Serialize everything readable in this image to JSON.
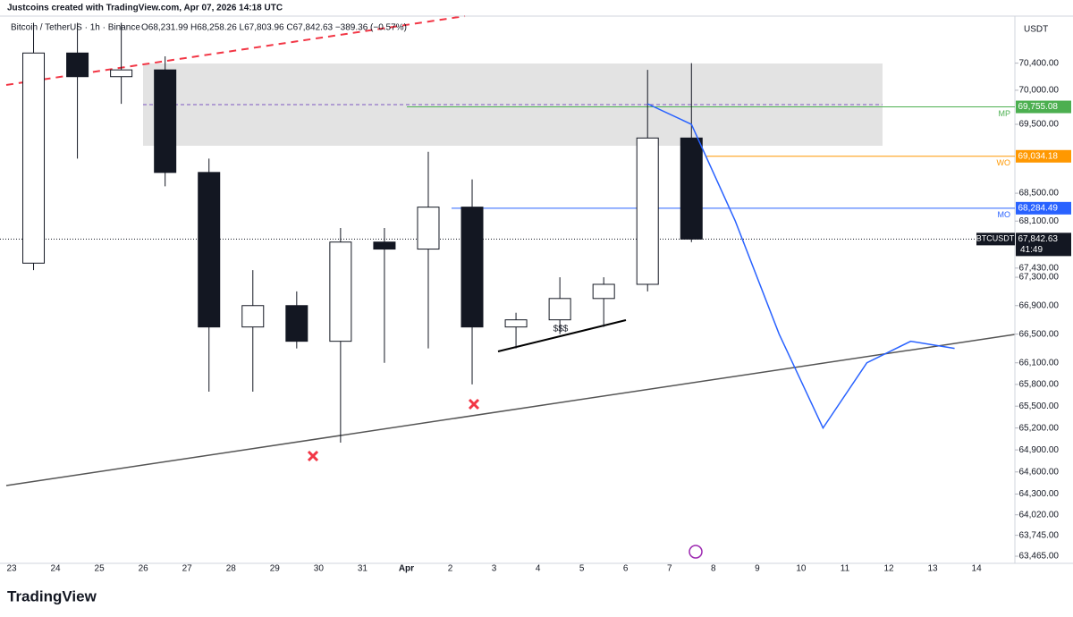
{
  "header": {
    "author": "Justcoins created with TradingView.com, Apr 07, 2026 14:18 UTC",
    "symbol": "Bitcoin / TetherUS · 1h · Binance",
    "ohlc": "O68,231.99 H68,258.26 L67,803.96 C67,842.63 −389.36 (−0.57%)",
    "currency": "USDT"
  },
  "footer": {
    "logo": "TradingView"
  },
  "annotations": {
    "liquidity": "$$$"
  },
  "chart_data": {
    "type": "candlestick",
    "log": true,
    "categories": [
      "23",
      "24",
      "25",
      "26",
      "27",
      "28",
      "29",
      "30",
      "31",
      "Apr",
      "2",
      "3",
      "4",
      "5",
      "6",
      "7",
      "8",
      "9",
      "10",
      "11",
      "12",
      "13",
      "14"
    ],
    "ylim": [
      63370,
      71100
    ],
    "yticks": [
      {
        "value": 70400,
        "label": "70,400.00"
      },
      {
        "value": 70000,
        "label": "70,000.00"
      },
      {
        "value": 69500,
        "label": "69,500.00"
      },
      {
        "value": 68500,
        "label": "68,500.00"
      },
      {
        "value": 68100,
        "label": "68,100.00"
      },
      {
        "value": 67430,
        "label": "67,430.00"
      },
      {
        "value": 67300,
        "label": "67,300.00"
      },
      {
        "value": 66900,
        "label": "66,900.00"
      },
      {
        "value": 66500,
        "label": "66,500.00"
      },
      {
        "value": 66100,
        "label": "66,100.00"
      },
      {
        "value": 65800,
        "label": "65,800.00"
      },
      {
        "value": 65500,
        "label": "65,500.00"
      },
      {
        "value": 65200,
        "label": "65,200.00"
      },
      {
        "value": 64900,
        "label": "64,900.00"
      },
      {
        "value": 64600,
        "label": "64,600.00"
      },
      {
        "value": 64300,
        "label": "64,300.00"
      },
      {
        "value": 64020,
        "label": "64,020.00"
      },
      {
        "value": 63745,
        "label": "63,745.00"
      },
      {
        "value": 63465,
        "label": "63,465.00"
      }
    ],
    "series": [
      {
        "name": "BTCUSDT",
        "color": "#131722",
        "open": [
          67500,
          70550,
          70200,
          70300,
          68800,
          66600,
          66900,
          66400,
          67800,
          67700,
          68300,
          66600,
          66700,
          67000,
          67200,
          69300,
          null,
          null,
          null,
          null,
          null,
          null,
          null
        ],
        "high": [
          71000,
          71000,
          71000,
          70500,
          69000,
          67400,
          67100,
          68000,
          68000,
          69100,
          68700,
          66800,
          67300,
          67300,
          70300,
          70400,
          null,
          null,
          null,
          null,
          null,
          null,
          null
        ],
        "low": [
          67400,
          69000,
          69800,
          68600,
          65700,
          65700,
          66300,
          65000,
          66100,
          66300,
          65800,
          66300,
          66500,
          66600,
          67100,
          67800,
          null,
          null,
          null,
          null,
          null,
          null,
          null
        ],
        "close": [
          70550,
          70200,
          70300,
          68800,
          66600,
          66900,
          66400,
          67800,
          67700,
          68300,
          66600,
          66700,
          67000,
          67200,
          69300,
          67842.63,
          null,
          null,
          null,
          null,
          null,
          null,
          null
        ]
      },
      {
        "type": "line",
        "color": "#2962ff",
        "values": [
          null,
          null,
          null,
          null,
          null,
          null,
          null,
          null,
          null,
          null,
          null,
          null,
          null,
          null,
          69800,
          69500,
          68100,
          66500,
          65200,
          66100,
          66400,
          66300,
          null
        ]
      }
    ],
    "levels": [
      {
        "label": "MP",
        "value": 69755.08,
        "value_label": "69,755.08",
        "color": "#4caf50"
      },
      {
        "label": "WO",
        "value": 69034.18,
        "value_label": "69,034.18",
        "color": "#ff9800"
      },
      {
        "label": "MO",
        "value": 68284.49,
        "value_label": "68,284.49",
        "color": "#2962ff"
      }
    ],
    "last_price": {
      "label": "BTCUSDT",
      "value": 67842.63,
      "value_label": "67,842.63",
      "countdown": "41:49"
    }
  }
}
